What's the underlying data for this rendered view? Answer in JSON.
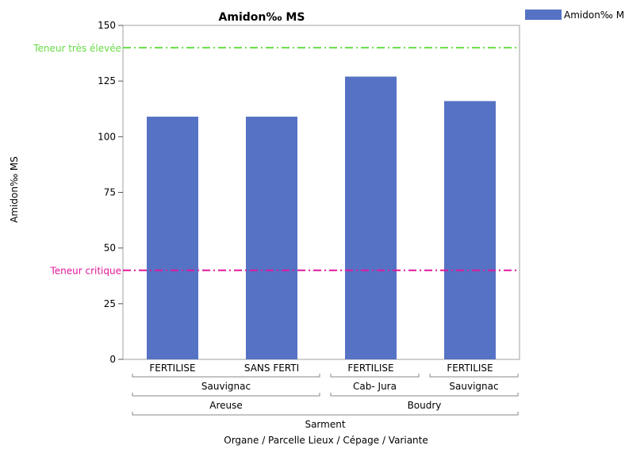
{
  "chart_data": {
    "type": "bar",
    "title": "Amidon‰ MS",
    "ylabel": "Amidon‰ MS",
    "xlabel": "Organe / Parcelle Lieux / Cépage / Variante",
    "ylim": [
      0,
      150
    ],
    "yticks": [
      0,
      25,
      50,
      75,
      100,
      125,
      150
    ],
    "grid": false,
    "legend_position": "top-right",
    "categories": [
      "FERTILISE",
      "SANS FERTI",
      "FERTILISE",
      "FERTILISE"
    ],
    "series": [
      {
        "name": "Amidon‰ MS",
        "values": [
          109,
          109,
          127,
          116
        ],
        "color": "#5672c4"
      }
    ],
    "category_groups": [
      {
        "level": "cepage",
        "groups": [
          {
            "label": "Sauvignac",
            "span": [
              0,
              1
            ]
          },
          {
            "label": "Cab- Jura",
            "span": [
              2,
              2
            ]
          },
          {
            "label": "Sauvignac",
            "span": [
              3,
              3
            ]
          }
        ]
      },
      {
        "level": "parcelle",
        "groups": [
          {
            "label": "Areuse",
            "span": [
              0,
              1
            ]
          },
          {
            "label": "Boudry",
            "span": [
              2,
              3
            ]
          }
        ]
      },
      {
        "level": "organe",
        "groups": [
          {
            "label": "Sarment",
            "span": [
              0,
              3
            ]
          }
        ]
      }
    ],
    "reference_lines": [
      {
        "label": "Teneur très élevée",
        "value": 140,
        "color": "#66dd44",
        "style": "dash-dot"
      },
      {
        "label": "Teneur critique",
        "value": 40,
        "color": "#e0179b",
        "style": "dash-dot"
      }
    ]
  }
}
